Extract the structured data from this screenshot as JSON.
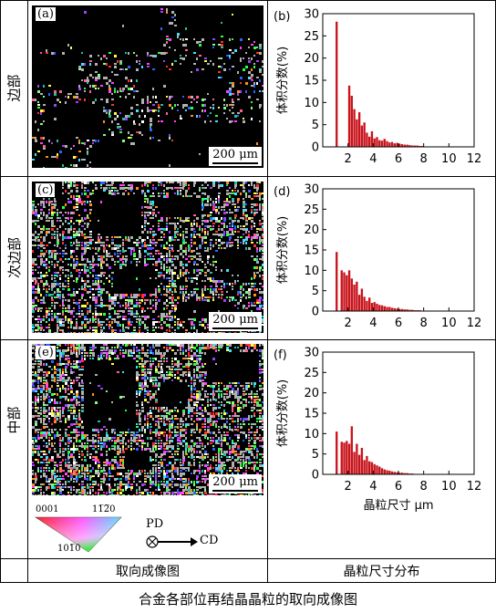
{
  "row_labels": [
    "边部",
    "次边部",
    "中部"
  ],
  "panels": [
    {
      "map_tag": "(a)",
      "chart_tag": "(b)",
      "scale": "200 μm",
      "black_regions": "edge"
    },
    {
      "map_tag": "(c)",
      "chart_tag": "(d)",
      "scale": "200 μm",
      "black_regions": "sub"
    },
    {
      "map_tag": "(e)",
      "chart_tag": "(f)",
      "scale": "200 μm",
      "black_regions": "mid"
    }
  ],
  "legend": {
    "corner_0001": "0001",
    "corner_1120": "11̅2̅0",
    "corner_1010": "101̅0",
    "pd": "PD",
    "cd": "CD"
  },
  "column_footers": [
    "取向成像图",
    "晶粒尺寸分布"
  ],
  "caption": "合金各部位再结晶晶粒的取向成像图",
  "colors": {
    "bar": "#c8141c",
    "map_bg": "#000000"
  },
  "chart_data": [
    {
      "type": "bar",
      "title": "(b)",
      "xlabel": "",
      "ylabel": "体积分数(%)",
      "xlim": [
        0,
        12
      ],
      "ylim": [
        0,
        30
      ],
      "xticks": [
        2,
        4,
        6,
        8,
        10,
        12
      ],
      "yticks": [
        0,
        5,
        10,
        15,
        20,
        25,
        30
      ],
      "x": [
        1.1,
        1.3,
        1.5,
        1.7,
        1.9,
        2.1,
        2.3,
        2.5,
        2.7,
        2.9,
        3.1,
        3.3,
        3.5,
        3.7,
        3.9,
        4.1,
        4.3,
        4.5,
        4.7,
        4.9,
        5.1,
        5.3,
        5.5,
        5.7,
        5.9,
        6.1,
        6.3,
        6.5,
        6.7,
        6.9,
        7.1,
        7.3,
        7.5,
        7.7,
        7.9
      ],
      "values": [
        28.2,
        0,
        0,
        0,
        0,
        13.8,
        11.5,
        8.5,
        6.2,
        7.8,
        4.8,
        5.5,
        3.2,
        2.3,
        3.5,
        1.9,
        2.2,
        1.5,
        1.4,
        1.8,
        1.3,
        1.0,
        1.1,
        0.8,
        0.9,
        0.7,
        0.6,
        0.5,
        0.5,
        0.4,
        0.3,
        0.3,
        0.3,
        0.2,
        0.2
      ]
    },
    {
      "type": "bar",
      "title": "(d)",
      "xlabel": "",
      "ylabel": "体积分数(%)",
      "xlim": [
        0,
        12
      ],
      "ylim": [
        0,
        30
      ],
      "xticks": [
        2,
        4,
        6,
        8,
        10,
        12
      ],
      "yticks": [
        0,
        5,
        10,
        15,
        20,
        25,
        30
      ],
      "x": [
        1.1,
        1.3,
        1.5,
        1.7,
        1.9,
        2.1,
        2.3,
        2.5,
        2.7,
        2.9,
        3.1,
        3.3,
        3.5,
        3.7,
        3.9,
        4.1,
        4.3,
        4.5,
        4.7,
        4.9,
        5.1,
        5.3,
        5.5,
        5.7,
        5.9,
        6.1,
        6.3,
        6.5,
        6.7,
        6.9,
        7.1,
        7.3,
        7.5,
        7.7,
        7.9
      ],
      "values": [
        14.5,
        0,
        10.0,
        9.5,
        8.8,
        10.0,
        8.0,
        6.5,
        7.2,
        4.0,
        5.5,
        3.5,
        2.5,
        3.3,
        2.0,
        2.2,
        1.8,
        1.5,
        1.4,
        1.2,
        1.0,
        1.0,
        0.8,
        0.7,
        0.6,
        0.5,
        0.5,
        0.4,
        0.4,
        0.3,
        0.3,
        0.2,
        0.2,
        0.2,
        0.1
      ]
    },
    {
      "type": "bar",
      "title": "(f)",
      "xlabel": "晶粒尺寸 μm",
      "ylabel": "体积分数(%)",
      "xlim": [
        0,
        12
      ],
      "ylim": [
        0,
        30
      ],
      "xticks": [
        2,
        4,
        6,
        8,
        10,
        12
      ],
      "yticks": [
        0,
        5,
        10,
        15,
        20,
        25,
        30
      ],
      "x": [
        1.1,
        1.3,
        1.5,
        1.7,
        1.9,
        2.1,
        2.3,
        2.5,
        2.7,
        2.9,
        3.1,
        3.3,
        3.5,
        3.7,
        3.9,
        4.1,
        4.3,
        4.5,
        4.7,
        4.9,
        5.1,
        5.3,
        5.5,
        5.7,
        5.9,
        6.1,
        6.3,
        6.5,
        6.7,
        6.9,
        7.1,
        7.3,
        7.5,
        7.7,
        7.9
      ],
      "values": [
        10.5,
        0,
        8.0,
        7.8,
        8.2,
        7.5,
        11.8,
        5.5,
        7.5,
        4.8,
        6.5,
        3.5,
        4.5,
        3.2,
        3.0,
        2.5,
        2.2,
        1.9,
        1.5,
        1.2,
        1.0,
        0.9,
        0.7,
        0.6,
        0.5,
        0.4,
        0.4,
        0.3,
        0.3,
        0.2,
        0.2,
        0.1,
        0.1,
        0.1,
        0.1
      ]
    }
  ]
}
